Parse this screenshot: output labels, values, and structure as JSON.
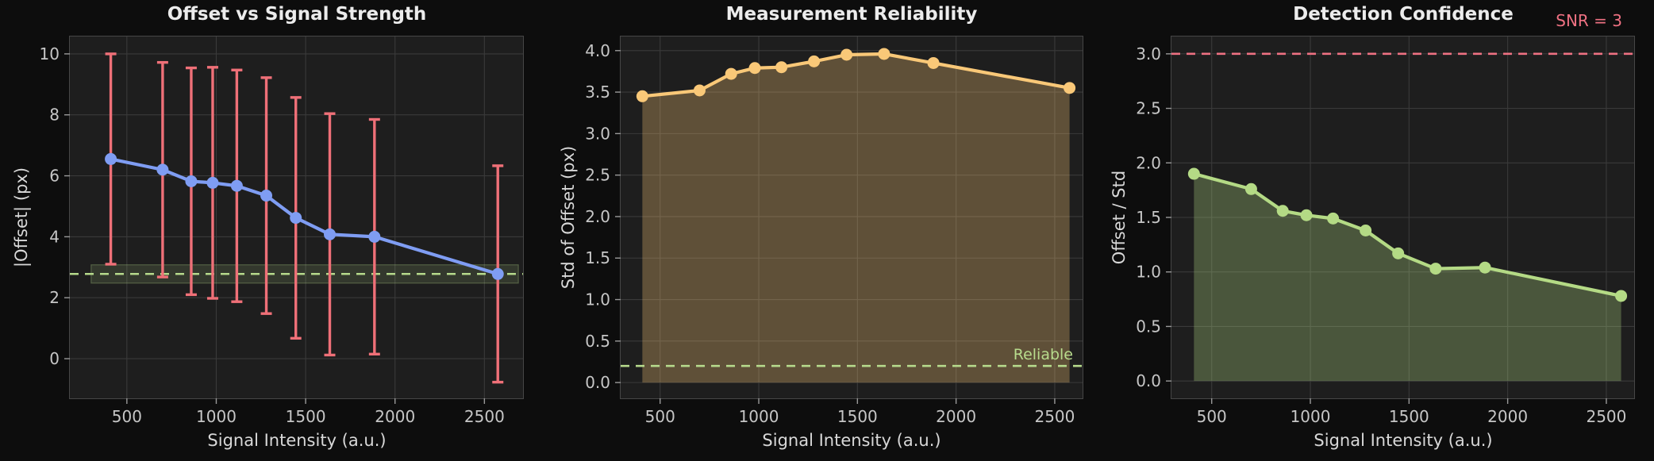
{
  "figure": {
    "background": "#0d0d0d",
    "axes_background": "#1e1e1e",
    "grid_color": "#3a3a3a",
    "title_color": "#ececec",
    "tick_label_color": "#c6c6c6"
  },
  "chart_data": [
    {
      "id": "offset-vs-signal",
      "type": "line",
      "title": "Offset vs Signal Strength",
      "xlabel": "Signal Intensity (a.u.)",
      "ylabel": "|Offset| (px)",
      "x": [
        410,
        700,
        860,
        980,
        1115,
        1280,
        1445,
        1635,
        1885,
        2575
      ],
      "y": [
        6.55,
        6.2,
        5.82,
        5.77,
        5.67,
        5.35,
        4.62,
        4.08,
        4.0,
        2.78
      ],
      "yerr": [
        3.45,
        3.52,
        3.72,
        3.79,
        3.8,
        3.87,
        3.95,
        3.96,
        3.85,
        3.55
      ],
      "xlim": [
        181,
        2716
      ],
      "ylim": [
        -1.3,
        10.57
      ],
      "xticks": [
        500,
        1000,
        1500,
        2000,
        2500
      ],
      "xtick_labels": [
        "500",
        "1000",
        "1500",
        "2000",
        "2500"
      ],
      "yticks": [
        0,
        2,
        4,
        6,
        8,
        10
      ],
      "ytick_labels": [
        "0",
        "2",
        "4",
        "6",
        "8",
        "10"
      ],
      "grid": true,
      "colors": {
        "line": "#7f9df3",
        "error": "#ef7078"
      },
      "hline": {
        "y": 2.78,
        "color": "#b5d98b",
        "style": "dashed"
      },
      "band": {
        "x0": 300,
        "x1": 2690,
        "y0": 2.48,
        "y1": 3.08,
        "color": "rgba(181,217,139,0.14)",
        "border": "rgba(181,217,139,0.30)"
      }
    },
    {
      "id": "measurement-reliability",
      "type": "area",
      "title": "Measurement Reliability",
      "xlabel": "Signal Intensity (a.u.)",
      "ylabel": "Std of Offset (px)",
      "x": [
        410,
        700,
        860,
        980,
        1115,
        1280,
        1445,
        1635,
        1885,
        2575
      ],
      "y": [
        3.45,
        3.52,
        3.72,
        3.79,
        3.8,
        3.87,
        3.95,
        3.96,
        3.85,
        3.55
      ],
      "xlim": [
        300,
        2641
      ],
      "ylim": [
        -0.19,
        4.17
      ],
      "xticks": [
        500,
        1000,
        1500,
        2000,
        2500
      ],
      "xtick_labels": [
        "500",
        "1000",
        "1500",
        "2000",
        "2500"
      ],
      "yticks": [
        0.0,
        0.5,
        1.0,
        1.5,
        2.0,
        2.5,
        3.0,
        3.5,
        4.0
      ],
      "ytick_labels": [
        "0.0",
        "0.5",
        "1.0",
        "1.5",
        "2.0",
        "2.5",
        "3.0",
        "3.5",
        "4.0"
      ],
      "grid": true,
      "fill_to_zero": true,
      "colors": {
        "line": "#f9c878",
        "fill": "rgba(249,200,120,0.30)"
      },
      "hline": {
        "y": 0.2,
        "color": "#b5d98b",
        "style": "dashed",
        "label": "Reliable"
      }
    },
    {
      "id": "detection-confidence",
      "type": "area",
      "title": "Detection Confidence",
      "xlabel": "Signal Intensity (a.u.)",
      "ylabel": "Offset / Std",
      "x": [
        410,
        700,
        860,
        980,
        1115,
        1280,
        1445,
        1635,
        1885,
        2575
      ],
      "y": [
        1.9,
        1.76,
        1.56,
        1.52,
        1.49,
        1.38,
        1.17,
        1.03,
        1.04,
        0.78
      ],
      "xlim": [
        296,
        2641
      ],
      "ylim": [
        -0.159,
        3.159
      ],
      "xticks": [
        500,
        1000,
        1500,
        2000,
        2500
      ],
      "xtick_labels": [
        "500",
        "1000",
        "1500",
        "2000",
        "2500"
      ],
      "yticks": [
        0.0,
        0.5,
        1.0,
        1.5,
        2.0,
        2.5,
        3.0
      ],
      "ytick_labels": [
        "0.0",
        "0.5",
        "1.0",
        "1.5",
        "2.0",
        "2.5",
        "3.0"
      ],
      "grid": true,
      "fill_to_zero": true,
      "colors": {
        "line": "#b4da85",
        "fill": "rgba(180,218,133,0.30)"
      },
      "hline": {
        "y": 3.0,
        "color": "#ee7182",
        "style": "dashed",
        "label": "SNR = 3"
      }
    }
  ]
}
